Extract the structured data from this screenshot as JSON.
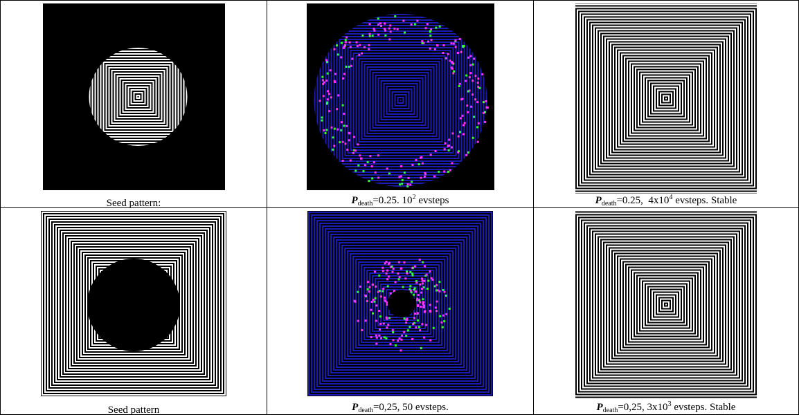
{
  "table": {
    "rows": [
      [
        {
          "caption": {
            "text": "Seed pattern:"
          }
        },
        {
          "caption": {
            "symbol": "P",
            "subscript": "death",
            "text": "=0.25. 10",
            "superscript": "2",
            "suffix": " evsteps"
          }
        },
        {
          "caption": {
            "symbol": "P",
            "subscript": "death",
            "text": "=0.25,  4x10",
            "superscript": "4",
            "suffix": " evsteps. Stable"
          }
        }
      ],
      [
        {
          "caption": {
            "text": "Seed pattern"
          }
        },
        {
          "caption": {
            "symbol": "P",
            "subscript": "death",
            "text": "=0,25, 50 evsteps."
          }
        },
        {
          "caption": {
            "symbol": "P",
            "subscript": "death",
            "text": "=0,25, 3x10",
            "superscript": "3",
            "suffix": " evsteps. Stable"
          }
        }
      ]
    ]
  }
}
